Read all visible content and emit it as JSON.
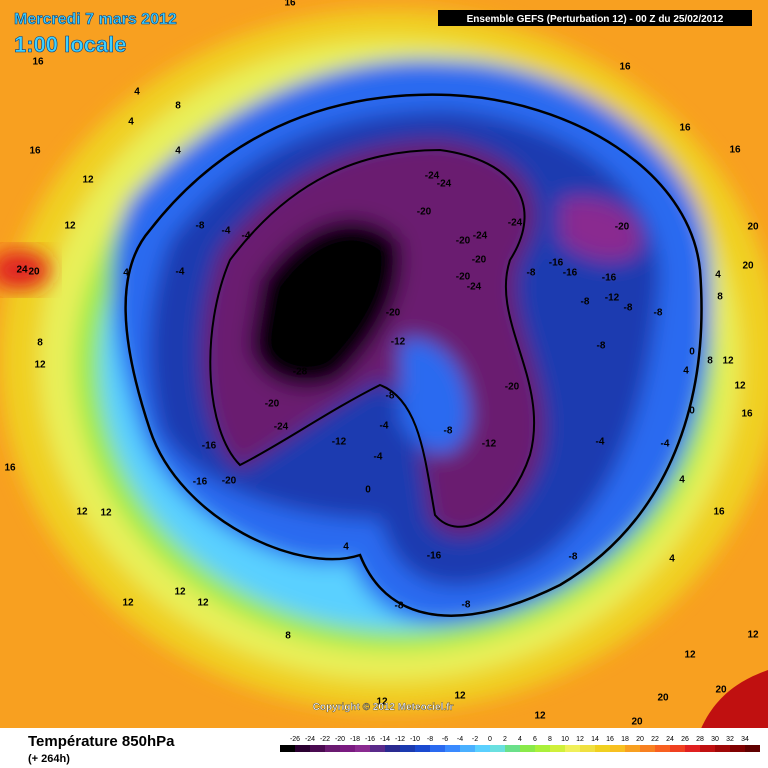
{
  "header": {
    "date": "Mercredi 7 mars 2012",
    "time": "1:00 locale",
    "run": "Ensemble GEFS (Perturbation 12)  -  00 Z du 25/02/2012"
  },
  "map": {
    "copyright": "Copyright © 2012 Meteociel.fr",
    "contour_labels": [
      "16",
      "16",
      "4",
      "8",
      "4",
      "4",
      "16",
      "12",
      "16",
      "16",
      "16",
      "12",
      "-8",
      "-4",
      "-4",
      "-4",
      "4",
      "24",
      "20",
      "8",
      "12",
      "-24",
      "-24",
      "-20",
      "-24",
      "-20",
      "-24",
      "-20",
      "-28",
      "-20",
      "-20",
      "-24",
      "-8",
      "-16",
      "-16",
      "-16",
      "-8",
      "-12",
      "-8",
      "-24",
      "-20",
      "-12",
      "-8",
      "-8",
      "4",
      "8",
      "0",
      "8",
      "12",
      "4",
      "0",
      "-28",
      "-20",
      "-20",
      "-8",
      "-24",
      "-4",
      "-8",
      "-12",
      "-12",
      "-4",
      "-4",
      "-16",
      "-4",
      "-16",
      "-20",
      "0",
      "4",
      "16",
      "12",
      "12",
      "4",
      "-16",
      "-8",
      "4",
      "12",
      "12",
      "12",
      "-8",
      "-8",
      "8",
      "12",
      "12",
      "20",
      "20",
      "20",
      "12",
      "12",
      "12",
      "20",
      "20",
      "12",
      "16",
      "16"
    ]
  },
  "footer": {
    "title": "Température 850hPa",
    "lead": "(+ 264h)"
  },
  "legend": {
    "ticks": [
      -26,
      -24,
      -22,
      -20,
      -18,
      -16,
      -14,
      -12,
      -10,
      -8,
      -6,
      -4,
      -2,
      0,
      2,
      4,
      6,
      8,
      10,
      12,
      14,
      16,
      18,
      20,
      22,
      24,
      26,
      28,
      30,
      32,
      34
    ],
    "colors": [
      "#000000",
      "#2a0030",
      "#4a0a50",
      "#6a1a70",
      "#7a1a80",
      "#8a2a90",
      "#5a2a8a",
      "#2a2a90",
      "#1a3ab0",
      "#1a4ad0",
      "#2a6af0",
      "#3a8aff",
      "#4ab0ff",
      "#5ad0ff",
      "#6ae0e0",
      "#6ae08a",
      "#8aea4a",
      "#aaf03a",
      "#d0f03a",
      "#f0f05a",
      "#f0e040",
      "#f0d020",
      "#f8c020",
      "#f8a020",
      "#f88020",
      "#f86020",
      "#f04020",
      "#e02020",
      "#c01010",
      "#a00808",
      "#800000",
      "#600000"
    ]
  }
}
